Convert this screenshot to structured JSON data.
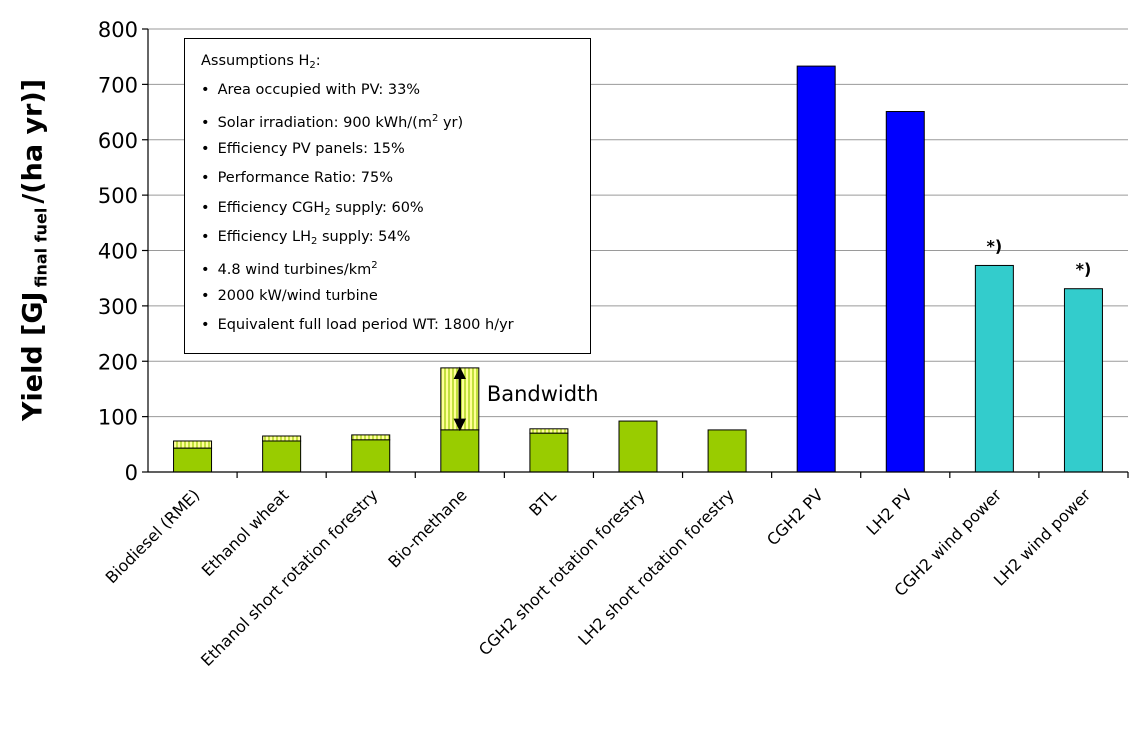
{
  "chart_data": {
    "type": "bar",
    "categories": [
      "Biodiesel (RME)",
      "Ethanol wheat",
      "Ethanol short rotation forestry",
      "Bio-methane",
      "BTL",
      "CGH2 short rotation forestry",
      "LH2 short rotation forestry",
      "CGH2 PV",
      "LH2 PV",
      "CGH2 wind power",
      "LH2 wind power"
    ],
    "values": [
      43,
      56,
      58,
      76,
      70,
      92,
      76,
      733,
      651,
      373,
      331
    ],
    "bandwidth_upper": [
      56,
      65,
      67,
      188,
      78,
      null,
      null,
      null,
      null,
      null,
      null
    ],
    "bar_colors": [
      "#99cc00",
      "#99cc00",
      "#99cc00",
      "#99cc00",
      "#99cc00",
      "#99cc00",
      "#99cc00",
      "#0000ff",
      "#0000ff",
      "#33cccc",
      "#33cccc"
    ],
    "bandwidth_fill": "#ffff99",
    "bandwidth_hatch": "#99cc00",
    "bar_labels": [
      "",
      "",
      "",
      "",
      "",
      "",
      "",
      "",
      "",
      "*)",
      "*)"
    ],
    "yticks": [
      0,
      100,
      200,
      300,
      400,
      500,
      600,
      700,
      800
    ],
    "ylim": [
      0,
      800
    ],
    "grid": true,
    "ylabel_main": "Yield [GJ",
    "ylabel_sub": "final fuel",
    "ylabel_tail": "/(ha yr)]",
    "annotation": "Bandwidth"
  },
  "assumptions": {
    "title": "Assumptions H",
    "title_sub": "2",
    "title_tail": ":",
    "items": [
      {
        "pre": "Area occupied with PV: 33%"
      },
      {
        "pre": "Solar irradiation: 900 kWh/(m",
        "sup": "2",
        "post": " yr)"
      },
      {
        "pre": "Efficiency PV panels: 15%"
      },
      {
        "pre": "Performance Ratio: 75%"
      },
      {
        "pre": "Efficiency CGH",
        "sub": "2",
        "post": " supply: 60%"
      },
      {
        "pre": "Efficiency LH",
        "sub": "2",
        "post": " supply: 54%"
      },
      {
        "pre": "4.8 wind turbines/km",
        "sup": "2"
      },
      {
        "pre": "2000 kW/wind turbine"
      },
      {
        "pre": "Equivalent full load period WT: 1800 h/yr"
      }
    ]
  }
}
